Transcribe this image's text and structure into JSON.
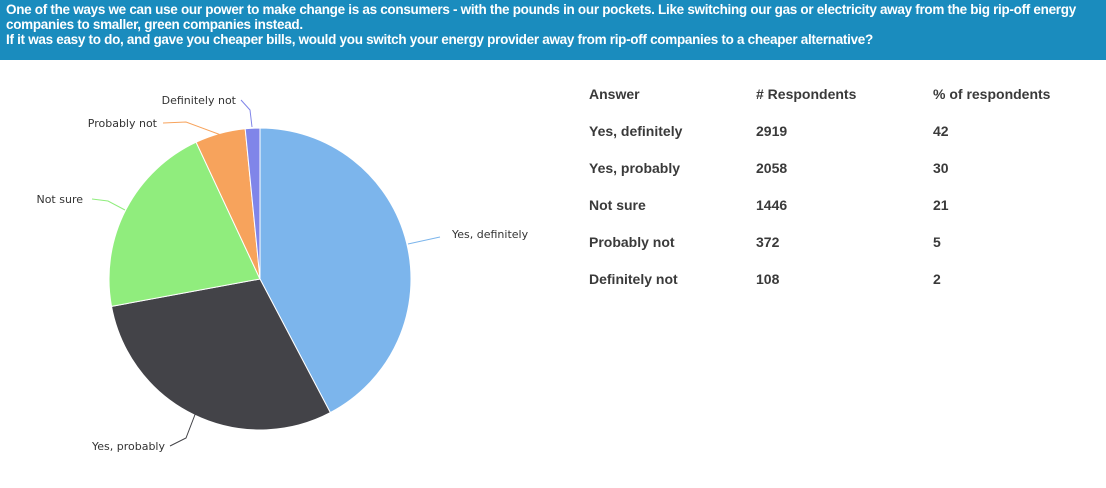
{
  "header": {
    "line1": "One of the ways we can use our power to make change is as consumers - with the pounds in our pockets. Like switching our gas or electricity away from the big rip-off energy",
    "line2": "companies to smaller, green companies instead.",
    "line3": "If it was easy to do, and gave you cheaper bills, would you switch your energy provider away from rip-off companies to a cheaper alternative?"
  },
  "table": {
    "headers": [
      "Answer",
      "# Respondents",
      "% of respondents"
    ],
    "rows": [
      [
        "Yes, definitely",
        "2919",
        "42"
      ],
      [
        "Yes, probably",
        "2058",
        "30"
      ],
      [
        "Not sure",
        "1446",
        "21"
      ],
      [
        "Probably not",
        "372",
        "5"
      ],
      [
        "Definitely not",
        "108",
        "2"
      ]
    ]
  },
  "chart_data": {
    "type": "pie",
    "categories": [
      "Yes, definitely",
      "Yes, probably",
      "Not sure",
      "Probably not",
      "Definitely not"
    ],
    "values": [
      2919,
      2058,
      1446,
      372,
      108
    ],
    "colors": [
      "#7cb5ec",
      "#434348",
      "#90ed7d",
      "#f7a35c",
      "#8085e9"
    ],
    "start_angle_deg": 0,
    "direction": "clockwise"
  }
}
